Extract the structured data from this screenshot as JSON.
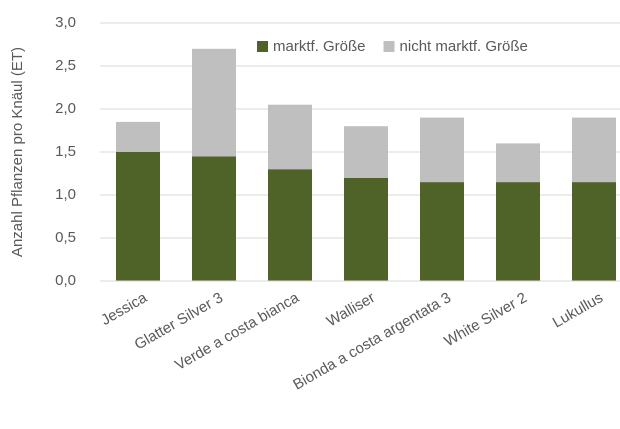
{
  "chart_data": {
    "type": "stacked_bar",
    "y_axis_label": "Anzahl Pflanzen pro Knäul (ET)",
    "categories": [
      "Jessica",
      "Glatter Silver 3",
      "Verde a costa bianca",
      "Walliser",
      "Bionda a costa argentata 3",
      "White Silver 2",
      "Lukullus"
    ],
    "series": [
      {
        "name": "marktf. Größe",
        "color": "#4f6228",
        "values": [
          1.5,
          1.45,
          1.3,
          1.2,
          1.15,
          1.15,
          1.15
        ]
      },
      {
        "name": "nicht marktf. Größe",
        "color": "#bfbfbf",
        "values": [
          0.35,
          1.25,
          0.75,
          0.6,
          0.75,
          0.45,
          0.75
        ]
      }
    ],
    "ylim": [
      0,
      3
    ],
    "yticks": [
      {
        "value": 0,
        "label": "0,0"
      },
      {
        "value": 0.5,
        "label": "0,5"
      },
      {
        "value": 1,
        "label": "1,0"
      },
      {
        "value": 1.5,
        "label": "1,5"
      },
      {
        "value": 2,
        "label": "2,0"
      },
      {
        "value": 2.5,
        "label": "2,5"
      },
      {
        "value": 3,
        "label": "3,0"
      }
    ],
    "grid": true,
    "legend": "top"
  }
}
